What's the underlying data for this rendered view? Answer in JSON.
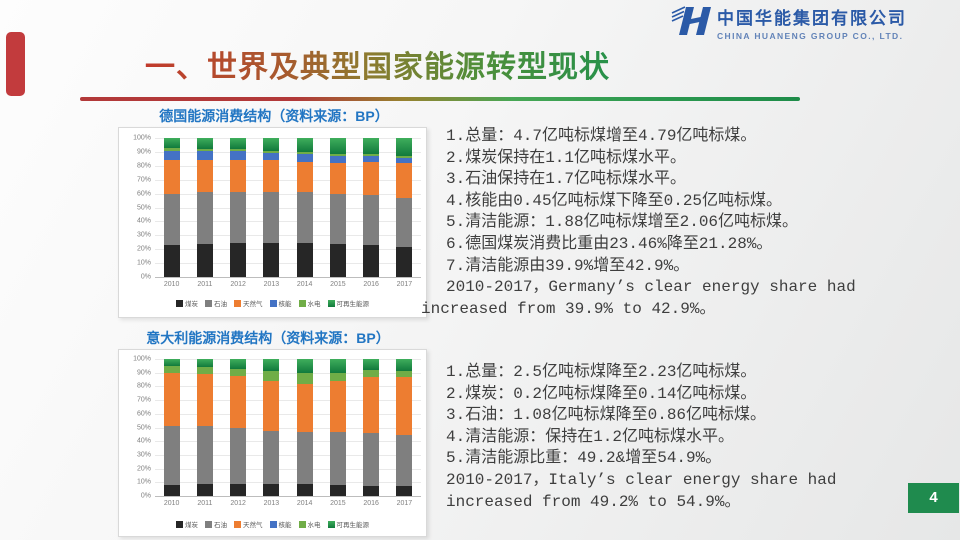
{
  "header": {
    "title": "一、世界及典型国家能源转型现状"
  },
  "logo": {
    "name_cn": "中国华能集团有限公司",
    "name_en": "CHINA HUANENG GROUP CO., LTD.",
    "brand_color": "#2b5aa7"
  },
  "page_number": "4",
  "colors": {
    "accent_red": "#c23b3d",
    "title_gradient_start": "#c13a2c",
    "title_gradient_end": "#27914a",
    "chart_label_blue": "#2276c3",
    "page_box_green": "#1f8b4e",
    "body_text": "#3e3e3e"
  },
  "sections": [
    {
      "chart_label": "德国能源消费结构（资料来源：BP）",
      "lines": [
        "1.总量：4.7亿吨标煤增至4.79亿吨标煤。",
        "2.煤炭保持在1.1亿吨标煤水平。",
        "3.石油保持在1.7亿吨标煤水平。",
        "4.核能由0.45亿吨标煤下降至0.25亿吨标煤。",
        "5.清洁能源：1.88亿吨标煤增至2.06亿吨标煤。",
        "6.德国煤炭消费比重由23.46%降至21.28%。",
        "7.清洁能源由39.9%增至42.9%。",
        "2010-2017，Germany’s clear energy share had",
        "increased from 39.9% to 42.9%。"
      ]
    },
    {
      "chart_label": "意大利能源消费结构（资料来源：BP）",
      "lines": [
        "1.总量：2.5亿吨标煤降至2.23亿吨标煤。",
        "2.煤炭：0.2亿吨标煤降至0.14亿吨标煤。",
        "3.石油：1.08亿吨标煤降至0.86亿吨标煤。",
        "4.清洁能源：保持在1.2亿吨标煤水平。",
        "5.清洁能源比重：49.2&增至54.9%。",
        "2010-2017，Italy’s clear energy share had",
        "increased from 49.2% to 54.9%。"
      ]
    }
  ],
  "chart_data": [
    {
      "type": "bar",
      "stacked": true,
      "title": "德国能源消费结构（资料来源：BP）",
      "categories": [
        "2010",
        "2011",
        "2012",
        "2013",
        "2014",
        "2015",
        "2016",
        "2017"
      ],
      "series": [
        {
          "name": "煤炭",
          "color": "#262626",
          "values": [
            23,
            24,
            24.5,
            24.5,
            24.5,
            24,
            23,
            21.3
          ]
        },
        {
          "name": "石油",
          "color": "#7f7f7f",
          "values": [
            37,
            37.5,
            36.5,
            36.5,
            37,
            36,
            36,
            35.7
          ]
        },
        {
          "name": "天然气",
          "color": "#ed7d31",
          "values": [
            24,
            23,
            23,
            23,
            21.5,
            22,
            23.5,
            25
          ]
        },
        {
          "name": "核能",
          "color": "#4472c4",
          "values": [
            7,
            6,
            6.5,
            5.5,
            5.5,
            5,
            4.5,
            3.5
          ]
        },
        {
          "name": "水电",
          "color": "#70ad47",
          "values": [
            1.5,
            1.5,
            1.5,
            1.5,
            1.5,
            1.5,
            1.5,
            1.5
          ]
        },
        {
          "name": "可再生能源",
          "color": "#3fae5c",
          "color2": "#117a3c",
          "values": [
            7.5,
            8,
            8,
            9,
            10,
            11.5,
            11.5,
            13
          ]
        }
      ],
      "ylabel_ticks": [
        "100%",
        "90%",
        "80%",
        "70%",
        "60%",
        "50%",
        "40%",
        "30%",
        "20%",
        "10%",
        "0%"
      ],
      "ylim": [
        0,
        100
      ],
      "grid": true,
      "legend_position": "bottom"
    },
    {
      "type": "bar",
      "stacked": true,
      "title": "意大利能源消费结构（资料来源：BP）",
      "categories": [
        "2010",
        "2011",
        "2012",
        "2013",
        "2014",
        "2015",
        "2016",
        "2017"
      ],
      "series": [
        {
          "name": "煤炭",
          "color": "#262626",
          "values": [
            8,
            9,
            9,
            8.5,
            8.5,
            8,
            7.5,
            7
          ]
        },
        {
          "name": "石油",
          "color": "#7f7f7f",
          "values": [
            43,
            42,
            41,
            39,
            38.5,
            39,
            38.5,
            37.5
          ]
        },
        {
          "name": "天然气",
          "color": "#ed7d31",
          "values": [
            39,
            38,
            37.5,
            36.5,
            35,
            37,
            41,
            42.5
          ]
        },
        {
          "name": "核能",
          "color": "#4472c4",
          "values": [
            0,
            0,
            0,
            0,
            0,
            0,
            0,
            0
          ]
        },
        {
          "name": "水电",
          "color": "#70ad47",
          "values": [
            5,
            5,
            5,
            7,
            8,
            6,
            5,
            4.5
          ]
        },
        {
          "name": "可再生能源",
          "color": "#3fae5c",
          "color2": "#117a3c",
          "values": [
            5,
            6,
            7.5,
            9,
            10,
            10,
            8,
            8.5
          ]
        }
      ],
      "ylabel_ticks": [
        "100%",
        "90%",
        "80%",
        "70%",
        "60%",
        "50%",
        "40%",
        "30%",
        "20%",
        "10%",
        "0%"
      ],
      "ylim": [
        0,
        100
      ],
      "grid": true,
      "legend_position": "bottom"
    }
  ]
}
